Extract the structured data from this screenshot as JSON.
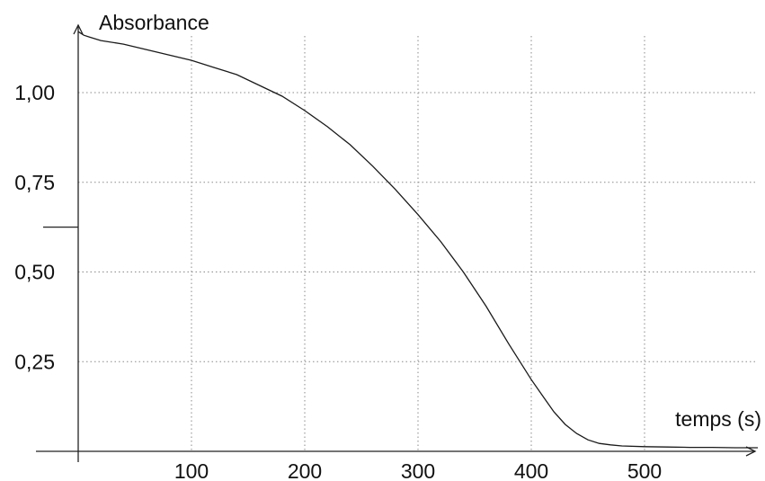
{
  "chart_data": {
    "type": "line",
    "xlabel": "temps (s)",
    "ylabel": "Absorbance",
    "xlim": [
      0,
      600
    ],
    "ylim": [
      0,
      1.2
    ],
    "x_ticks": [
      100,
      200,
      300,
      400,
      500
    ],
    "x_tick_labels": [
      "100",
      "200",
      "300",
      "400",
      "500"
    ],
    "y_ticks": [
      0.25,
      0.5,
      0.75,
      1.0
    ],
    "y_tick_labels": [
      "0,25",
      "0,50",
      "0,75",
      "1,00"
    ],
    "grid": true,
    "series": [
      {
        "x": [
          0,
          5,
          10,
          20,
          40,
          60,
          80,
          100,
          120,
          140,
          160,
          180,
          200,
          220,
          240,
          260,
          280,
          300,
          320,
          340,
          360,
          380,
          400,
          410,
          420,
          430,
          440,
          450,
          460,
          470,
          480,
          500,
          520,
          540,
          560,
          580,
          600
        ],
        "y": [
          1.17,
          1.16,
          1.155,
          1.145,
          1.135,
          1.12,
          1.105,
          1.09,
          1.07,
          1.05,
          1.02,
          0.99,
          0.95,
          0.905,
          0.855,
          0.795,
          0.73,
          0.66,
          0.585,
          0.5,
          0.405,
          0.3,
          0.2,
          0.155,
          0.11,
          0.075,
          0.05,
          0.032,
          0.022,
          0.018,
          0.015,
          0.013,
          0.012,
          0.011,
          0.011,
          0.01,
          0.01
        ]
      }
    ]
  }
}
